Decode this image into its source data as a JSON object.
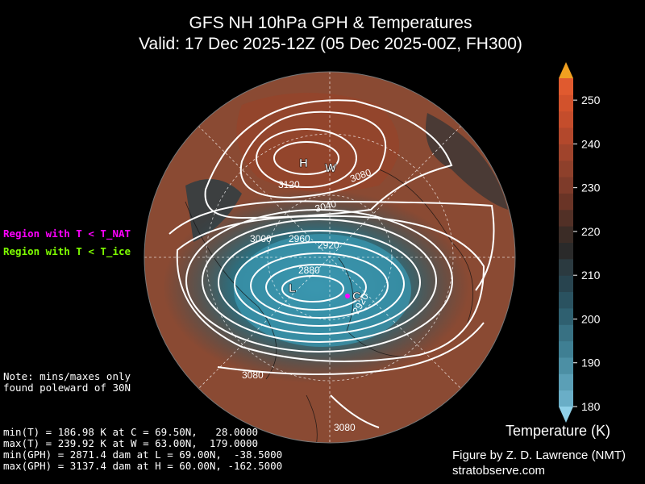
{
  "title": {
    "line1": "GFS NH 10hPa GPH & Temperatures",
    "line2": "Valid: 17 Dec 2025-12Z  (05 Dec 2025-00Z, FH300)"
  },
  "legend": {
    "nat": {
      "text": "Region with T < T_NAT",
      "color": "#ff00ff"
    },
    "ice": {
      "text": "Region with T < T_ice",
      "color": "#7fff00"
    }
  },
  "note": "Note: mins/maxes only\nfound poleward of 30N",
  "stats": [
    "min(T) = 186.98 K at C = 69.50N,   28.0000",
    "max(T) = 239.92 K at W = 63.00N,  179.0000",
    "min(GPH) = 2871.4 dam at L = 69.00N,  -38.5000",
    "max(GPH) = 3137.4 dam at H = 60.00N, -162.5000"
  ],
  "credit": {
    "line1": "Figure by Z. D. Lawrence (NMT)",
    "line2": "stratobserve.com"
  },
  "colorbar": {
    "title": "Temperature (K)",
    "ticks": [
      250,
      240,
      230,
      220,
      210,
      200,
      190,
      180
    ],
    "min": 180,
    "max": 255
  },
  "map_labels": {
    "H": "H",
    "W": "W",
    "L": "L",
    "C": "C",
    "contours": [
      "3120",
      "3080",
      "3040",
      "3000",
      "2960",
      "2920",
      "2880",
      "2920",
      "3080",
      "3080"
    ]
  }
}
